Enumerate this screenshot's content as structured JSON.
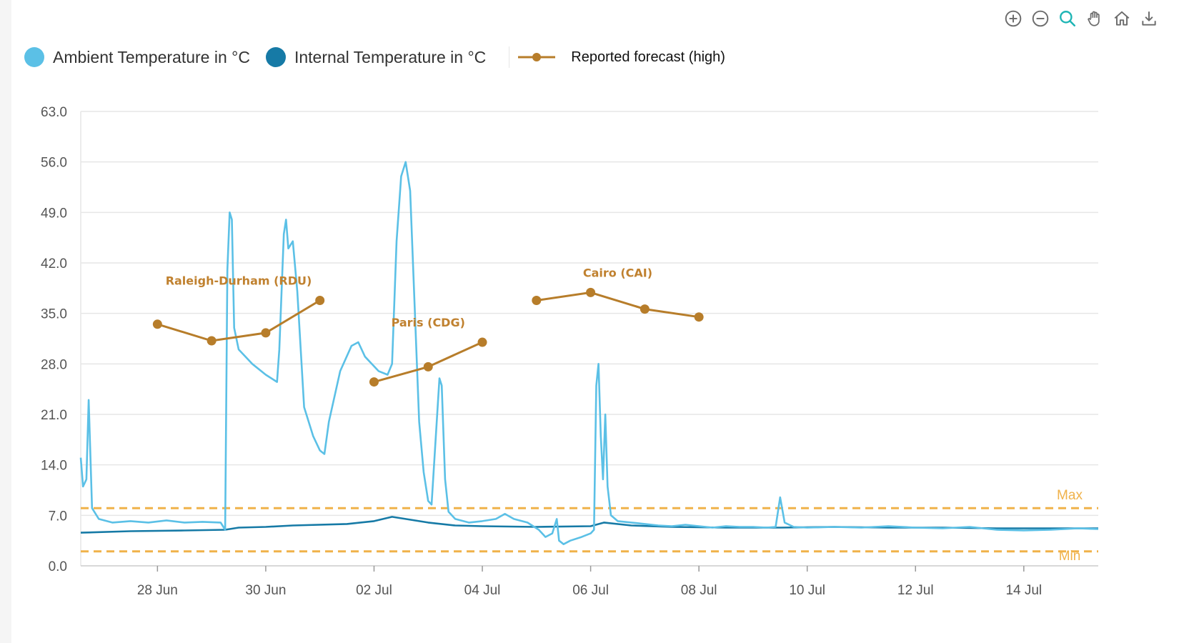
{
  "toolbar": {
    "icons": [
      "zoom-in-icon",
      "zoom-out-icon",
      "zoom-select-icon",
      "pan-icon",
      "reset-home-icon",
      "download-icon"
    ],
    "active_color": "#1fb5b5",
    "color": "#6b6b6b"
  },
  "legend": {
    "ambient_label": "Ambient Temperature in °C",
    "internal_label": "Internal Temperature in °C",
    "forecast_label": "Reported forecast (high)"
  },
  "colors": {
    "ambient": "#5bc0e6",
    "internal": "#167aa6",
    "forecast": "#b77d2a",
    "threshold": "#f0b24a",
    "grid": "#e6e6e6"
  },
  "chart_data": {
    "type": "line",
    "title": "",
    "xlabel": "",
    "ylabel": "",
    "ylim": [
      0,
      63
    ],
    "y_ticks": [
      "0.0",
      "7.0",
      "14.0",
      "21.0",
      "28.0",
      "35.0",
      "42.0",
      "49.0",
      "56.0",
      "63.0"
    ],
    "x_ticks": [
      {
        "date": "2023-06-28",
        "label": "28 Jun"
      },
      {
        "date": "2023-06-30",
        "label": "30 Jun"
      },
      {
        "date": "2023-07-02",
        "label": "02 Jul"
      },
      {
        "date": "2023-07-04",
        "label": "04 Jul"
      },
      {
        "date": "2023-07-06",
        "label": "06 Jul"
      },
      {
        "date": "2023-07-08",
        "label": "08 Jul"
      },
      {
        "date": "2023-07-10",
        "label": "10 Jul"
      },
      {
        "date": "2023-07-12",
        "label": "12 Jul"
      },
      {
        "date": "2023-07-14",
        "label": "14 Jul"
      }
    ],
    "xlim": [
      "2023-06-26T14:00",
      "2023-07-15T09:00"
    ],
    "thresholds": [
      {
        "label": "Max",
        "value": 8
      },
      {
        "label": "Min",
        "value": 2
      }
    ],
    "series": [
      {
        "name": "Ambient Temperature in °C",
        "points": [
          [
            "2023-06-26T14:00",
            15
          ],
          [
            "2023-06-26T15:00",
            11
          ],
          [
            "2023-06-26T16:30",
            12
          ],
          [
            "2023-06-26T17:30",
            23
          ],
          [
            "2023-06-26T19:00",
            8
          ],
          [
            "2023-06-26T22:00",
            6.5
          ],
          [
            "2023-06-27T04:00",
            6
          ],
          [
            "2023-06-27T12:00",
            6.2
          ],
          [
            "2023-06-27T20:00",
            6
          ],
          [
            "2023-06-28T04:00",
            6.3
          ],
          [
            "2023-06-28T12:00",
            6
          ],
          [
            "2023-06-28T20:00",
            6.1
          ],
          [
            "2023-06-29T04:00",
            6
          ],
          [
            "2023-06-29T06:00",
            5
          ],
          [
            "2023-06-29T07:00",
            41
          ],
          [
            "2023-06-29T08:00",
            49
          ],
          [
            "2023-06-29T09:00",
            48
          ],
          [
            "2023-06-29T10:00",
            33
          ],
          [
            "2023-06-29T12:00",
            30
          ],
          [
            "2023-06-29T18:00",
            28
          ],
          [
            "2023-06-30T00:00",
            26.5
          ],
          [
            "2023-06-30T05:00",
            25.5
          ],
          [
            "2023-06-30T06:00",
            30
          ],
          [
            "2023-06-30T08:00",
            46
          ],
          [
            "2023-06-30T09:00",
            48
          ],
          [
            "2023-06-30T10:00",
            44
          ],
          [
            "2023-06-30T12:00",
            45
          ],
          [
            "2023-06-30T14:00",
            38
          ],
          [
            "2023-06-30T17:00",
            22
          ],
          [
            "2023-06-30T21:00",
            18
          ],
          [
            "2023-07-01T00:00",
            16
          ],
          [
            "2023-07-01T02:00",
            15.5
          ],
          [
            "2023-07-01T04:00",
            20
          ],
          [
            "2023-07-01T09:00",
            27
          ],
          [
            "2023-07-01T14:00",
            30.5
          ],
          [
            "2023-07-01T17:00",
            31
          ],
          [
            "2023-07-01T20:00",
            29
          ],
          [
            "2023-07-02T02:00",
            27
          ],
          [
            "2023-07-02T06:00",
            26.5
          ],
          [
            "2023-07-02T08:00",
            28
          ],
          [
            "2023-07-02T10:00",
            45
          ],
          [
            "2023-07-02T12:00",
            54
          ],
          [
            "2023-07-02T14:00",
            56
          ],
          [
            "2023-07-02T16:00",
            52
          ],
          [
            "2023-07-02T18:00",
            36
          ],
          [
            "2023-07-02T20:00",
            20
          ],
          [
            "2023-07-02T22:00",
            13
          ],
          [
            "2023-07-03T00:00",
            9
          ],
          [
            "2023-07-03T01:30",
            8.5
          ],
          [
            "2023-07-03T03:00",
            16
          ],
          [
            "2023-07-03T05:00",
            26
          ],
          [
            "2023-07-03T06:00",
            25
          ],
          [
            "2023-07-03T07:30",
            12
          ],
          [
            "2023-07-03T09:00",
            7.5
          ],
          [
            "2023-07-03T12:00",
            6.5
          ],
          [
            "2023-07-03T18:00",
            6
          ],
          [
            "2023-07-04T00:00",
            6.2
          ],
          [
            "2023-07-04T06:00",
            6.5
          ],
          [
            "2023-07-04T10:00",
            7.2
          ],
          [
            "2023-07-04T14:00",
            6.5
          ],
          [
            "2023-07-04T20:00",
            6
          ],
          [
            "2023-07-05T01:00",
            5
          ],
          [
            "2023-07-05T04:00",
            4
          ],
          [
            "2023-07-05T07:00",
            4.5
          ],
          [
            "2023-07-05T09:00",
            6.5
          ],
          [
            "2023-07-05T10:00",
            3.5
          ],
          [
            "2023-07-05T12:00",
            3
          ],
          [
            "2023-07-05T15:00",
            3.5
          ],
          [
            "2023-07-05T20:00",
            4
          ],
          [
            "2023-07-06T00:00",
            4.5
          ],
          [
            "2023-07-06T01:30",
            5
          ],
          [
            "2023-07-06T02:30",
            25
          ],
          [
            "2023-07-06T03:30",
            28
          ],
          [
            "2023-07-06T04:30",
            18
          ],
          [
            "2023-07-06T05:30",
            12
          ],
          [
            "2023-07-06T06:30",
            21
          ],
          [
            "2023-07-06T07:30",
            11
          ],
          [
            "2023-07-06T09:00",
            7
          ],
          [
            "2023-07-06T12:00",
            6.2
          ],
          [
            "2023-07-06T18:00",
            6
          ],
          [
            "2023-07-07T00:00",
            5.8
          ],
          [
            "2023-07-07T06:00",
            5.6
          ],
          [
            "2023-07-07T12:00",
            5.5
          ],
          [
            "2023-07-07T18:00",
            5.7
          ],
          [
            "2023-07-08T00:00",
            5.5
          ],
          [
            "2023-07-08T06:00",
            5.3
          ],
          [
            "2023-07-08T12:00",
            5.5
          ],
          [
            "2023-07-08T18:00",
            5.4
          ],
          [
            "2023-07-09T00:00",
            5.4
          ],
          [
            "2023-07-09T06:00",
            5.3
          ],
          [
            "2023-07-09T10:00",
            5.4
          ],
          [
            "2023-07-09T12:00",
            9.5
          ],
          [
            "2023-07-09T14:00",
            6
          ],
          [
            "2023-07-09T18:00",
            5.4
          ],
          [
            "2023-07-10T00:00",
            5.3
          ],
          [
            "2023-07-10T12:00",
            5.4
          ],
          [
            "2023-07-11T00:00",
            5.3
          ],
          [
            "2023-07-11T12:00",
            5.5
          ],
          [
            "2023-07-12T00:00",
            5.3
          ],
          [
            "2023-07-12T12:00",
            5.2
          ],
          [
            "2023-07-13T00:00",
            5.4
          ],
          [
            "2023-07-13T12:00",
            5
          ],
          [
            "2023-07-14T00:00",
            4.9
          ],
          [
            "2023-07-14T12:00",
            5
          ],
          [
            "2023-07-15T00:00",
            5.2
          ],
          [
            "2023-07-15T09:00",
            5.1
          ]
        ]
      },
      {
        "name": "Internal Temperature in °C",
        "points": [
          [
            "2023-06-26T14:00",
            4.6
          ],
          [
            "2023-06-27T12:00",
            4.8
          ],
          [
            "2023-06-28T12:00",
            4.9
          ],
          [
            "2023-06-29T06:00",
            5
          ],
          [
            "2023-06-29T12:00",
            5.3
          ],
          [
            "2023-06-30T00:00",
            5.4
          ],
          [
            "2023-06-30T12:00",
            5.6
          ],
          [
            "2023-07-01T12:00",
            5.8
          ],
          [
            "2023-07-02T00:00",
            6.2
          ],
          [
            "2023-07-02T08:00",
            6.8
          ],
          [
            "2023-07-02T16:00",
            6.4
          ],
          [
            "2023-07-03T00:00",
            6
          ],
          [
            "2023-07-03T12:00",
            5.6
          ],
          [
            "2023-07-04T00:00",
            5.5
          ],
          [
            "2023-07-05T00:00",
            5.4
          ],
          [
            "2023-07-06T00:00",
            5.5
          ],
          [
            "2023-07-06T06:00",
            6
          ],
          [
            "2023-07-06T18:00",
            5.6
          ],
          [
            "2023-07-07T12:00",
            5.4
          ],
          [
            "2023-07-08T12:00",
            5.3
          ],
          [
            "2023-07-09T12:00",
            5.3
          ],
          [
            "2023-07-10T12:00",
            5.4
          ],
          [
            "2023-07-11T12:00",
            5.3
          ],
          [
            "2023-07-12T12:00",
            5.3
          ],
          [
            "2023-07-13T12:00",
            5.2
          ],
          [
            "2023-07-14T12:00",
            5.2
          ],
          [
            "2023-07-15T09:00",
            5.2
          ]
        ]
      },
      {
        "name": "Reported forecast (high)",
        "groups": [
          {
            "label": "Raleigh-Durham (RDU)",
            "points": [
              [
                "2023-06-28T00:00",
                33.5
              ],
              [
                "2023-06-29T00:00",
                31.2
              ],
              [
                "2023-06-30T00:00",
                32.3
              ],
              [
                "2023-07-01T00:00",
                36.8
              ]
            ]
          },
          {
            "label": "Paris (CDG)",
            "points": [
              [
                "2023-07-02T00:00",
                25.5
              ],
              [
                "2023-07-03T00:00",
                27.6
              ],
              [
                "2023-07-04T00:00",
                31
              ]
            ]
          },
          {
            "label": "Cairo (CAI)",
            "points": [
              [
                "2023-07-05T00:00",
                36.8
              ],
              [
                "2023-07-06T00:00",
                37.9
              ],
              [
                "2023-07-07T00:00",
                35.6
              ],
              [
                "2023-07-08T00:00",
                34.5
              ]
            ]
          }
        ]
      }
    ]
  }
}
